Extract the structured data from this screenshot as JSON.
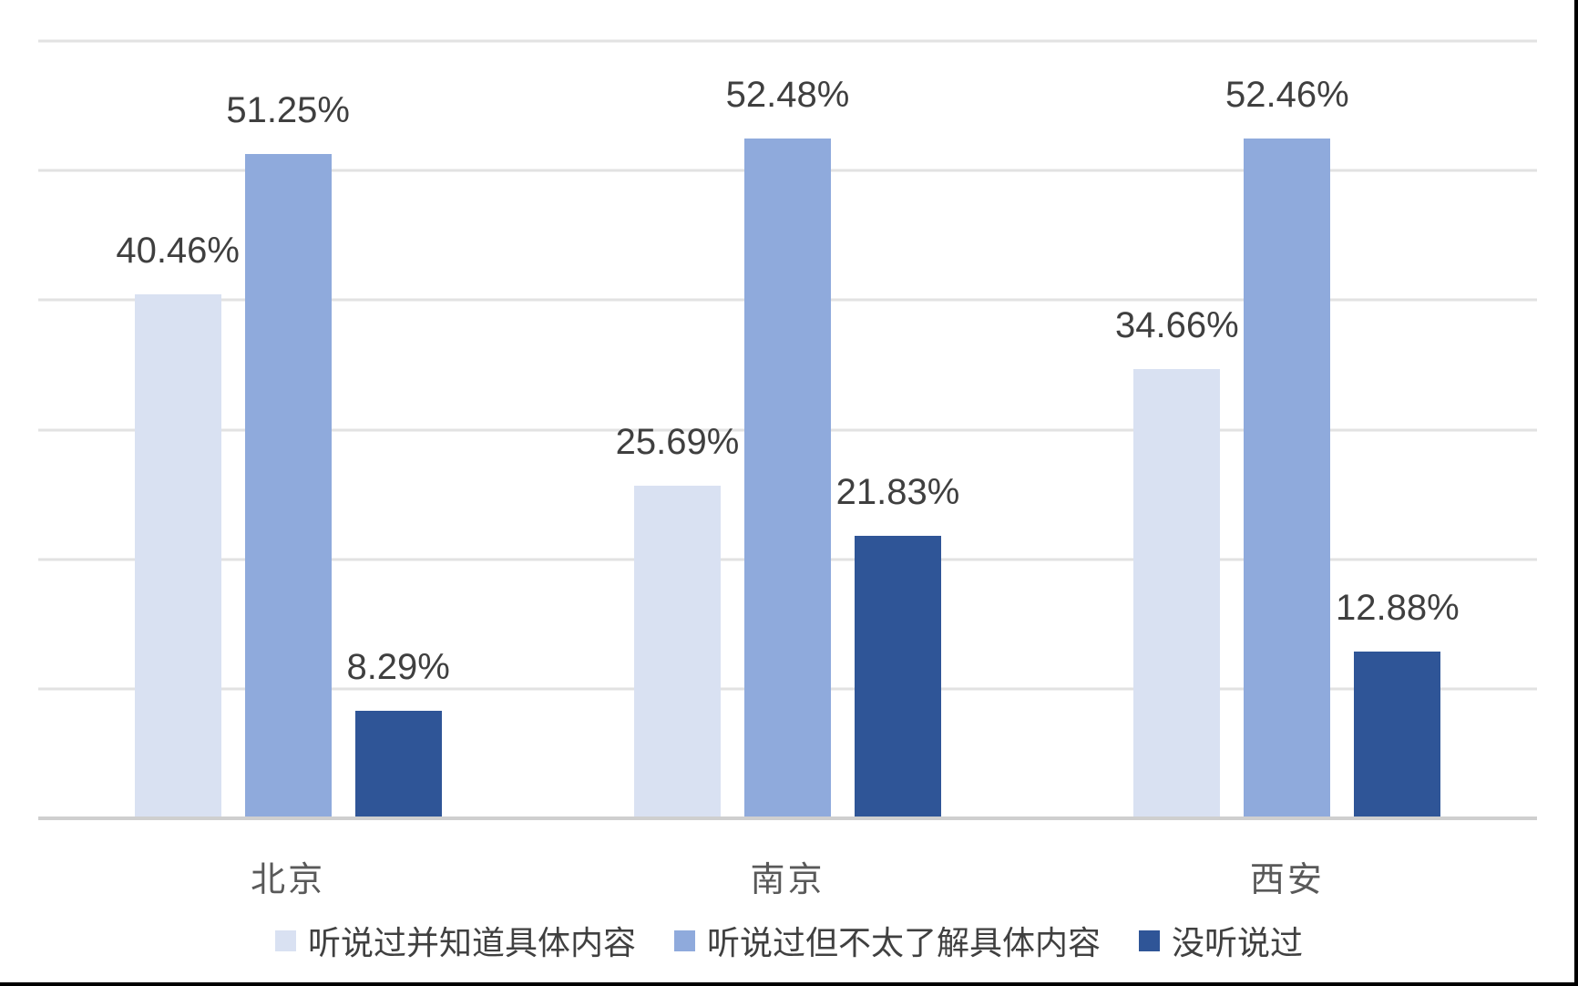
{
  "chart_data": {
    "type": "bar",
    "categories": [
      "北京",
      "南京",
      "西安"
    ],
    "series": [
      {
        "name": "听说过并知道具体内容",
        "color": "#D9E1F2",
        "values": [
          40.46,
          25.69,
          34.66
        ]
      },
      {
        "name": "听说过但不太了解具体内容",
        "color": "#8FAADC",
        "values": [
          51.25,
          52.48,
          52.46
        ]
      },
      {
        "name": "没听说过",
        "color": "#2F5597",
        "values": [
          8.29,
          21.83,
          12.88
        ]
      }
    ],
    "data_labels": [
      "40.46%",
      "51.25%",
      "8.29%",
      "25.69%",
      "52.48%",
      "21.83%",
      "34.66%",
      "52.46%",
      "12.88%"
    ],
    "label_format": "0.00%",
    "title": "",
    "xlabel": "",
    "ylabel": "",
    "ylim": [
      0,
      60
    ],
    "grid_interval": 10,
    "grid": "horizontal-only",
    "y_tick_labels_visible": false,
    "legend_position": "bottom"
  },
  "style": {
    "background": "#FFFFFF",
    "gridline_color": "#E2E2E2",
    "axis_line_color": "#CFCFCF",
    "data_label_color": "#3F3F3F",
    "category_label_color": "#595959",
    "legend_text_color": "#404040",
    "frame_edge_color": "#000000"
  }
}
